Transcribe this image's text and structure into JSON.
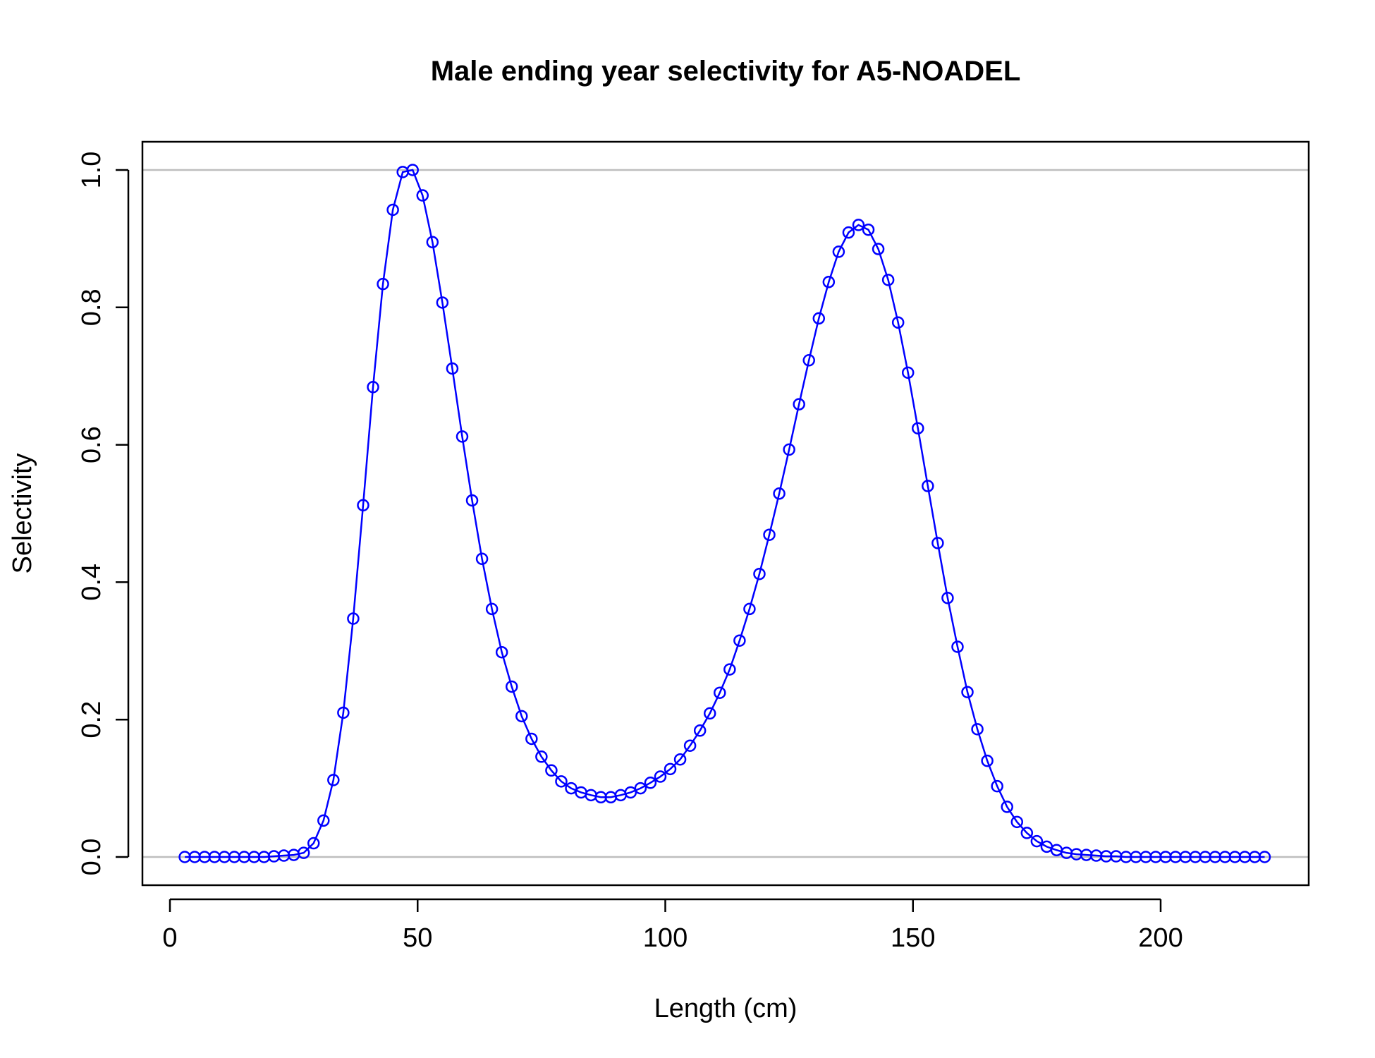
{
  "chart_data": {
    "type": "line",
    "title": "Male ending year selectivity for A5-NOADEL",
    "xlabel": "Length (cm)",
    "ylabel": "Selectivity",
    "xlim": [
      -2.5,
      232.5
    ],
    "ylim": [
      -0.04,
      1.04
    ],
    "xticks": [
      0,
      50,
      100,
      150,
      200
    ],
    "xtick_labels": [
      "0",
      "50",
      "100",
      "150",
      "200"
    ],
    "yticks": [
      0,
      0.2,
      0.4,
      0.6,
      0.8,
      1.0
    ],
    "ytick_labels": [
      "0.0",
      "0.2",
      "0.4",
      "0.6",
      "0.8",
      "1.0"
    ],
    "reference_lines_y": [
      0,
      1
    ],
    "series_color": "#0000ff",
    "reference_line_color": "#bebebe",
    "series": [
      {
        "name": "Selectivity",
        "marker": "open-circle",
        "x": [
          3,
          5,
          7,
          9,
          11,
          13,
          15,
          17,
          19,
          21,
          23,
          25,
          27,
          29,
          31,
          33,
          35,
          37,
          39,
          41,
          43,
          45,
          47,
          49,
          51,
          53,
          55,
          57,
          59,
          61,
          63,
          65,
          67,
          69,
          71,
          73,
          75,
          77,
          79,
          81,
          83,
          85,
          87,
          89,
          91,
          93,
          95,
          97,
          99,
          101,
          103,
          105,
          107,
          109,
          111,
          113,
          115,
          117,
          119,
          121,
          123,
          125,
          127,
          129,
          131,
          133,
          135,
          137,
          139,
          141,
          143,
          145,
          147,
          149,
          151,
          153,
          155,
          157,
          159,
          161,
          163,
          165,
          167,
          169,
          171,
          173,
          175,
          177,
          179,
          181,
          183,
          185,
          187,
          189,
          191,
          193,
          195,
          197,
          199,
          201,
          203,
          205,
          207,
          209,
          211,
          213,
          215,
          217,
          219,
          221
        ],
        "y": [
          0,
          0,
          0,
          0,
          0,
          0,
          0,
          0,
          0,
          0.001,
          0.002,
          0.003,
          0.006,
          0.02,
          0.053,
          0.112,
          0.21,
          0.347,
          0.512,
          0.684,
          0.834,
          0.942,
          0.997,
          1.0,
          0.963,
          0.895,
          0.807,
          0.711,
          0.612,
          0.519,
          0.434,
          0.361,
          0.298,
          0.248,
          0.205,
          0.172,
          0.146,
          0.126,
          0.11,
          0.1,
          0.094,
          0.09,
          0.087,
          0.087,
          0.09,
          0.094,
          0.1,
          0.108,
          0.117,
          0.128,
          0.142,
          0.162,
          0.184,
          0.209,
          0.239,
          0.273,
          0.315,
          0.361,
          0.412,
          0.469,
          0.529,
          0.593,
          0.659,
          0.723,
          0.784,
          0.837,
          0.881,
          0.909,
          0.92,
          0.913,
          0.885,
          0.84,
          0.778,
          0.705,
          0.624,
          0.54,
          0.457,
          0.377,
          0.306,
          0.24,
          0.186,
          0.14,
          0.103,
          0.073,
          0.051,
          0.035,
          0.023,
          0.015,
          0.01,
          0.006,
          0.004,
          0.003,
          0.002,
          0.001,
          0.001,
          0,
          0,
          0,
          0,
          0,
          0,
          0,
          0,
          0,
          0,
          0,
          0,
          0,
          0,
          0
        ]
      }
    ]
  }
}
